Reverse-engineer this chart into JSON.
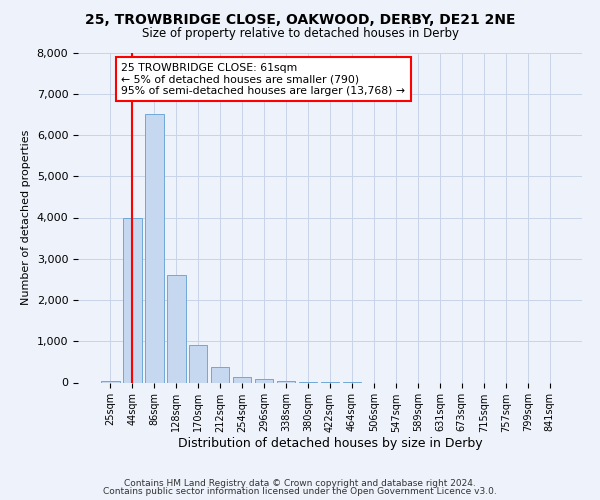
{
  "title_line1": "25, TROWBRIDGE CLOSE, OAKWOOD, DERBY, DE21 2NE",
  "title_line2": "Size of property relative to detached houses in Derby",
  "xlabel": "Distribution of detached houses by size in Derby",
  "ylabel": "Number of detached properties",
  "categories": [
    "25sqm",
    "44sqm",
    "86sqm",
    "128sqm",
    "170sqm",
    "212sqm",
    "254sqm",
    "296sqm",
    "338sqm",
    "380sqm",
    "422sqm",
    "464sqm",
    "506sqm",
    "547sqm",
    "589sqm",
    "631sqm",
    "673sqm",
    "715sqm",
    "757sqm",
    "799sqm",
    "841sqm"
  ],
  "bar_values": [
    30,
    4000,
    6500,
    2600,
    900,
    380,
    130,
    80,
    30,
    5,
    5,
    5,
    0,
    0,
    0,
    0,
    0,
    0,
    0,
    0,
    0
  ],
  "bar_color": "#c5d8f0",
  "bar_edge_color": "#6fa8d8",
  "grid_color": "#c8d4e8",
  "annotation_text": "25 TROWBRIDGE CLOSE: 61sqm\n← 5% of detached houses are smaller (790)\n95% of semi-detached houses are larger (13,768) →",
  "annotation_box_color": "white",
  "annotation_box_edge": "red",
  "ylim": [
    0,
    8000
  ],
  "yticks": [
    0,
    1000,
    2000,
    3000,
    4000,
    5000,
    6000,
    7000,
    8000
  ],
  "footer_line1": "Contains HM Land Registry data © Crown copyright and database right 2024.",
  "footer_line2": "Contains public sector information licensed under the Open Government Licence v3.0.",
  "background_color": "#eef2fa"
}
